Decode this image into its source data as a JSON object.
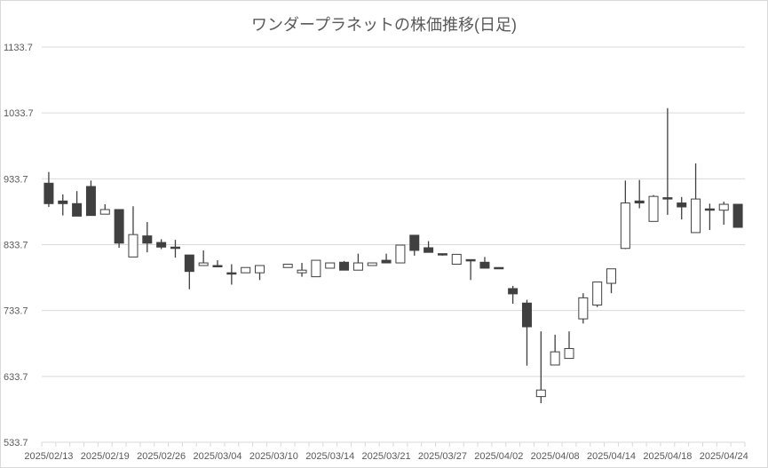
{
  "chart_data": {
    "type": "candlestick",
    "title": "ワンダープラネットの株価推移(日足)",
    "ylim": [
      533.7,
      1133.7
    ],
    "yticks": [
      "533.7",
      "633.7",
      "733.7",
      "833.7",
      "933.7",
      "1033.7",
      "1133.7"
    ],
    "grid": true,
    "colors": {
      "up_fill": "#ffffff",
      "down_fill": "#404040",
      "stroke": "#404040",
      "grid": "#d9d9d9",
      "text": "#595959"
    },
    "categories": [
      "2025/02/13",
      "2025/02/14",
      "2025/02/17",
      "2025/02/18",
      "2025/02/19",
      "2025/02/20",
      "2025/02/21",
      "2025/02/25",
      "2025/02/26",
      "2025/02/27",
      "2025/02/28",
      "2025/03/03",
      "2025/03/04",
      "2025/03/05",
      "2025/03/06",
      "2025/03/07",
      "2025/03/10",
      "2025/03/11",
      "2025/03/12",
      "2025/03/13",
      "2025/03/14",
      "2025/03/17",
      "2025/03/18",
      "2025/03/19",
      "2025/03/21",
      "2025/03/24",
      "2025/03/25",
      "2025/03/26",
      "2025/03/27",
      "2025/03/28",
      "2025/03/31",
      "2025/04/01",
      "2025/04/02",
      "2025/04/03",
      "2025/04/04",
      "2025/04/07",
      "2025/04/08",
      "2025/04/09",
      "2025/04/10",
      "2025/04/11",
      "2025/04/14",
      "2025/04/15",
      "2025/04/16",
      "2025/04/17",
      "2025/04/18",
      "2025/04/21",
      "2025/04/22",
      "2025/04/23",
      "2025/04/24",
      "2025/04/25"
    ],
    "label_every": 4,
    "ohlc": [
      [
        927,
        944,
        891,
        896
      ],
      [
        900,
        910,
        878,
        896
      ],
      [
        896,
        915,
        877,
        877
      ],
      [
        922,
        931,
        878,
        878
      ],
      [
        880,
        895,
        880,
        887
      ],
      [
        887,
        887,
        829,
        836
      ],
      [
        815,
        892,
        815,
        849
      ],
      [
        847,
        868,
        822,
        836
      ],
      [
        837,
        842,
        827,
        830
      ],
      [
        830,
        841,
        814,
        829
      ],
      [
        818,
        818,
        766,
        793
      ],
      [
        802,
        825,
        802,
        806
      ],
      [
        802,
        810,
        800,
        800
      ],
      [
        791,
        804,
        773,
        790
      ],
      [
        791,
        799,
        791,
        799
      ],
      [
        791,
        802,
        780,
        802
      ],
      null,
      [
        799,
        804,
        799,
        804
      ],
      [
        791,
        806,
        785,
        795
      ],
      [
        785,
        810,
        785,
        810
      ],
      [
        798,
        806,
        798,
        806
      ],
      [
        807,
        809,
        795,
        795
      ],
      [
        795,
        820,
        795,
        806
      ],
      [
        802,
        806,
        802,
        806
      ],
      [
        810,
        820,
        806,
        806
      ],
      [
        806,
        833,
        806,
        833
      ],
      [
        848,
        848,
        817,
        825
      ],
      [
        829,
        839,
        822,
        822
      ],
      [
        820,
        820,
        817,
        818
      ],
      [
        804,
        819,
        804,
        819
      ],
      [
        811,
        811,
        780,
        809
      ],
      [
        807,
        815,
        798,
        798
      ],
      [
        799,
        799,
        798,
        798
      ],
      [
        767,
        771,
        744,
        759
      ],
      [
        745,
        750,
        650,
        709
      ],
      [
        603,
        702,
        593,
        613
      ],
      [
        651,
        697,
        651,
        671
      ],
      [
        661,
        702,
        661,
        676
      ],
      [
        721,
        760,
        714,
        753
      ],
      [
        742,
        777,
        739,
        777
      ],
      [
        775,
        797,
        760,
        797
      ],
      [
        828,
        931,
        827,
        897
      ],
      [
        900,
        932,
        889,
        897
      ],
      [
        869,
        909,
        869,
        907
      ],
      [
        905,
        1041,
        879,
        904
      ],
      [
        897,
        906,
        872,
        891
      ],
      [
        852,
        957,
        852,
        903
      ],
      [
        888,
        896,
        856,
        886
      ],
      [
        886,
        899,
        864,
        895
      ],
      [
        895,
        895,
        860,
        860
      ]
    ]
  }
}
